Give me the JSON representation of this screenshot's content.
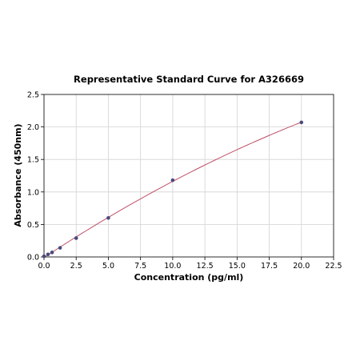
{
  "chart_data": {
    "type": "scatter",
    "title": "Representative Standard Curve for A326669",
    "xlabel": "Concentration (pg/ml)",
    "ylabel": "Absorbance (450nm)",
    "xlim": [
      0,
      22.5
    ],
    "ylim": [
      0,
      2.5
    ],
    "xticks": [
      "0.0",
      "2.5",
      "5.0",
      "7.5",
      "10.0",
      "12.5",
      "15.0",
      "17.5",
      "20.0",
      "22.5"
    ],
    "yticks": [
      "0.0",
      "0.5",
      "1.0",
      "1.5",
      "2.0",
      "2.5"
    ],
    "grid": true,
    "series": [
      {
        "x": [
          0,
          0.3125,
          0.625,
          1.25,
          2.5,
          5,
          10,
          20
        ],
        "y": [
          0.01,
          0.04,
          0.07,
          0.14,
          0.29,
          0.6,
          1.18,
          2.07
        ],
        "marker_color": "#4a4a7a",
        "line_color": "#c0506a"
      }
    ]
  }
}
